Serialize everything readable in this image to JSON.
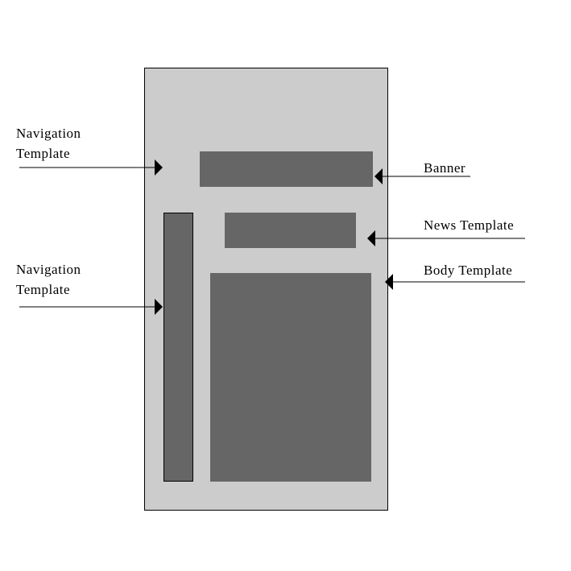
{
  "colors": {
    "page_fill": "#cccccc",
    "block_fill": "#666666",
    "line": "#000000",
    "background": "#ffffff"
  },
  "labels": {
    "navigation_top": [
      "Navigation",
      "Template"
    ],
    "navigation_side": [
      "Navigation",
      "Template"
    ],
    "banner": "Banner",
    "news": "News Template",
    "body": "Body Template"
  }
}
